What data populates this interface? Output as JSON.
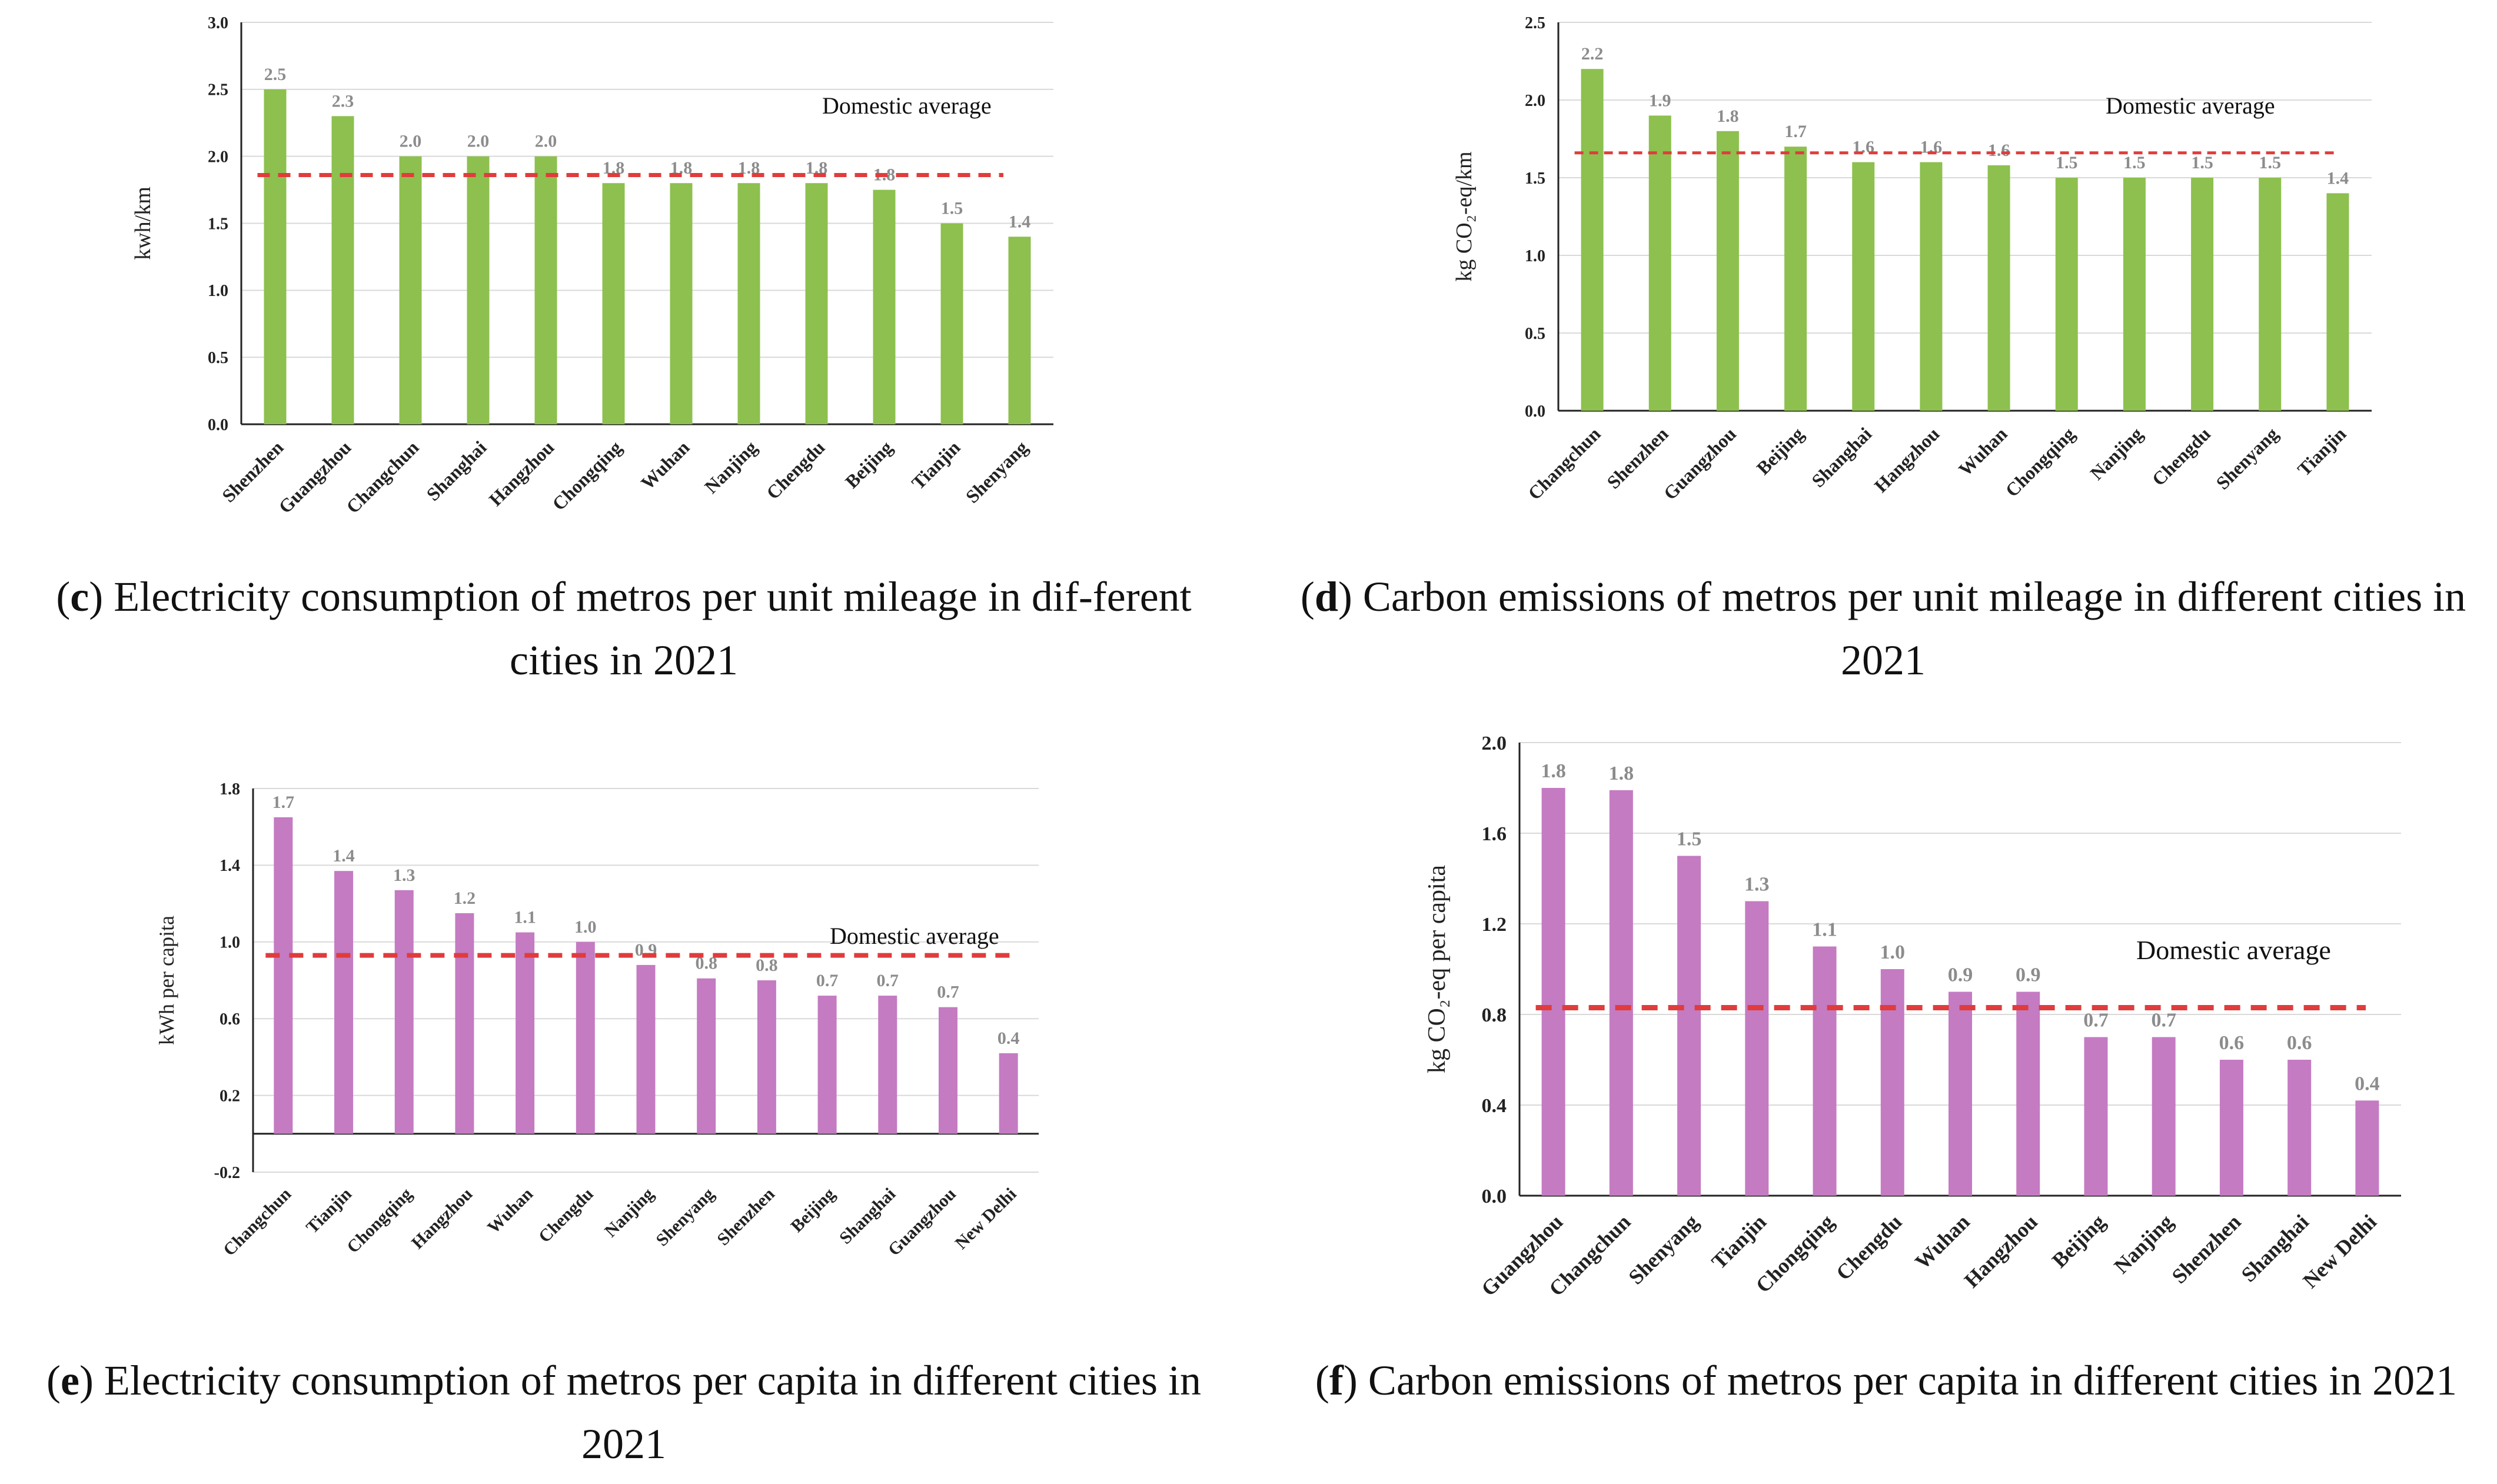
{
  "chart_data": [
    {
      "id": "c",
      "type": "bar",
      "title": "",
      "xlabel": "",
      "ylabel": "kwh/km",
      "categories": [
        "Shenzhen",
        "Guangzhou",
        "Changchun",
        "Shanghai",
        "Hangzhou",
        "Chongqing",
        "Wuhan",
        "Nanjing",
        "Chengdu",
        "Beijing",
        "Tianjin",
        "Shenyang"
      ],
      "values": [
        2.5,
        2.3,
        2.0,
        2.0,
        2.0,
        1.8,
        1.8,
        1.8,
        1.8,
        1.75,
        1.5,
        1.4
      ],
      "data_labels": [
        "2.5",
        "2.3",
        "2.0",
        "2.0",
        "2.0",
        "1.8",
        "1.8",
        "1.8",
        "1.8",
        "1.8",
        "1.5",
        "1.4"
      ],
      "ylim": [
        0.0,
        3.0
      ],
      "yticks": [
        "0.0",
        "0.5",
        "1.0",
        "1.5",
        "2.0",
        "2.5",
        "3.0"
      ],
      "grid": true,
      "bar_color": "#8DC04E",
      "reference_line": {
        "label": "Domestic average",
        "value": 1.86,
        "color": "#E03C3C",
        "style": "dashed"
      },
      "caption": {
        "letter": "c",
        "text": ") Electricity consumption of metros per unit mileage in dif-ferent cities in 2021",
        "open": "("
      }
    },
    {
      "id": "d",
      "type": "bar",
      "title": "",
      "xlabel": "",
      "ylabel": "kg CO₂-eq/km",
      "categories": [
        "Changchun",
        "Shenzhen",
        "Guangzhou",
        "Beijing",
        "Shanghai",
        "Hangzhou",
        "Wuhan",
        "Chongqing",
        "Nanjing",
        "Chengdu",
        "Shenyang",
        "Tianjin"
      ],
      "values": [
        2.2,
        1.9,
        1.8,
        1.7,
        1.6,
        1.6,
        1.58,
        1.5,
        1.5,
        1.5,
        1.5,
        1.4
      ],
      "data_labels": [
        "2.2",
        "1.9",
        "1.8",
        "1.7",
        "1.6",
        "1.6",
        "1.6",
        "1.5",
        "1.5",
        "1.5",
        "1.5",
        "1.4"
      ],
      "ylim": [
        0.0,
        2.5
      ],
      "yticks": [
        "0.0",
        "0.5",
        "1.0",
        "1.5",
        "2.0",
        "2.5"
      ],
      "grid": true,
      "bar_color": "#8DC04E",
      "reference_line": {
        "label": "Domestic average",
        "value": 1.66,
        "color": "#E03C3C",
        "style": "dashed"
      },
      "caption": {
        "letter": "d",
        "text": ") Carbon emissions of metros per unit mileage in different cities in 2021",
        "open": "("
      }
    },
    {
      "id": "e",
      "type": "bar",
      "title": "",
      "xlabel": "",
      "ylabel": "kWh per capita",
      "categories": [
        "Changchun",
        "Tianjin",
        "Chongqing",
        "Hangzhou",
        "Wuhan",
        "Chengdu",
        "Nanjing",
        "Shenyang",
        "Shenzhen",
        "Beijing",
        "Shanghai",
        "Guangzhou",
        "New Delhi"
      ],
      "values": [
        1.65,
        1.37,
        1.27,
        1.15,
        1.05,
        1.0,
        0.88,
        0.81,
        0.8,
        0.72,
        0.72,
        0.66,
        0.42
      ],
      "data_labels": [
        "1.7",
        "1.4",
        "1.3",
        "1.2",
        "1.1",
        "1.0",
        "0.9",
        "0.8",
        "0.8",
        "0.7",
        "0.7",
        "0.7",
        "0.4"
      ],
      "ylim": [
        -0.2,
        1.8
      ],
      "yticks": [
        "-0.2",
        "0.2",
        "0.6",
        "1.0",
        "1.4",
        "1.8"
      ],
      "grid": true,
      "bar_color": "#C47BC2",
      "reference_line": {
        "label": "Domestic average",
        "value": 0.93,
        "color": "#E03C3C",
        "style": "dashed"
      },
      "caption": {
        "letter": "e",
        "text": ") Electricity consumption of metros per capita in different cities in 2021",
        "open": "("
      }
    },
    {
      "id": "f",
      "type": "bar",
      "title": "",
      "xlabel": "",
      "ylabel": "kg CO₂-eq per capita",
      "categories": [
        "Guangzhou",
        "Changchun",
        "Shenyang",
        "Tianjin",
        "Chongqing",
        "Chengdu",
        "Wuhan",
        "Hangzhou",
        "Beijing",
        "Nanjing",
        "Shenzhen",
        "Shanghai",
        "New Delhi"
      ],
      "values": [
        1.8,
        1.79,
        1.5,
        1.3,
        1.1,
        1.0,
        0.9,
        0.9,
        0.7,
        0.7,
        0.6,
        0.6,
        0.42
      ],
      "data_labels": [
        "1.8",
        "1.8",
        "1.5",
        "1.3",
        "1.1",
        "1.0",
        "0.9",
        "0.9",
        "0.7",
        "0.7",
        "0.6",
        "0.6",
        "0.4"
      ],
      "ylim": [
        0.0,
        2.0
      ],
      "yticks": [
        "0.0",
        "0.4",
        "0.8",
        "1.2",
        "1.6",
        "2.0"
      ],
      "grid": true,
      "bar_color": "#C47BC2",
      "reference_line": {
        "label": "Domestic average",
        "value": 0.83,
        "color": "#E03C3C",
        "style": "dashed"
      },
      "caption": {
        "letter": "f",
        "text": ") Carbon emissions of metros per capita in different cities in 2021",
        "open": "("
      }
    }
  ]
}
